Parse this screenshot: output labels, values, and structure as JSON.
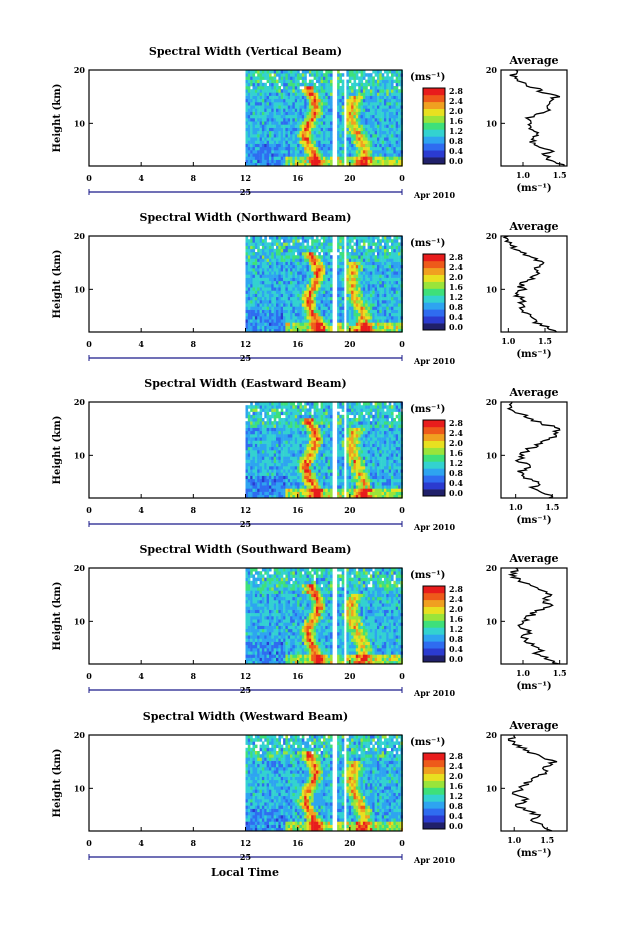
{
  "chart_data": [
    {
      "type": "heatmap",
      "title": "Spectral Width (Vertical Beam)",
      "ylabel": "Height (km)",
      "ylim": [
        2,
        20
      ],
      "yticks": [
        10,
        20
      ],
      "xticks": [
        "0",
        "4",
        "8",
        "12",
        "16",
        "20",
        "0"
      ],
      "xlim": [
        0,
        24
      ],
      "data_start_hour": 12,
      "gaps": [
        [
          18.7,
          19.1
        ],
        [
          19.5,
          19.8
        ]
      ],
      "date_day": "25",
      "date_month_year": "Apr 2010",
      "colorbar": {
        "unit": "(ms⁻¹)",
        "ticks": [
          "0.0",
          "0.4",
          "0.8",
          "1.2",
          "1.6",
          "2.0",
          "2.4",
          "2.8"
        ]
      },
      "average": {
        "title": "Average",
        "xlabel": "(ms⁻¹)",
        "xlim": [
          0.7,
          1.6
        ],
        "xticks": [
          "1.0",
          "1.5"
        ],
        "yticks": [
          10,
          20
        ],
        "profile": [
          [
            1.55,
            2
          ],
          [
            1.4,
            3
          ],
          [
            1.3,
            4
          ],
          [
            1.38,
            5
          ],
          [
            1.15,
            6
          ],
          [
            1.1,
            7
          ],
          [
            1.2,
            8
          ],
          [
            1.05,
            9
          ],
          [
            1.12,
            10
          ],
          [
            1.1,
            11
          ],
          [
            1.25,
            12
          ],
          [
            1.38,
            13
          ],
          [
            1.35,
            14
          ],
          [
            1.45,
            15
          ],
          [
            1.25,
            16
          ],
          [
            1.1,
            17
          ],
          [
            0.95,
            18
          ],
          [
            0.85,
            19
          ],
          [
            0.9,
            20
          ]
        ]
      }
    },
    {
      "type": "heatmap",
      "title": "Spectral Width (Northward Beam)",
      "ylabel": "Height (km)",
      "ylim": [
        2,
        20
      ],
      "yticks": [
        10,
        20
      ],
      "xticks": [
        "0",
        "4",
        "8",
        "12",
        "16",
        "20",
        "0"
      ],
      "xlim": [
        0,
        24
      ],
      "data_start_hour": 12,
      "gaps": [
        [
          18.7,
          19.1
        ],
        [
          19.5,
          19.8
        ]
      ],
      "date_day": "25",
      "date_month_year": "Apr 2010",
      "colorbar": {
        "unit": "(ms⁻¹)",
        "ticks": [
          "0.0",
          "0.4",
          "0.8",
          "1.2",
          "1.6",
          "2.0",
          "2.4",
          "2.8"
        ]
      },
      "average": {
        "title": "Average",
        "xlabel": "(ms⁻¹)",
        "xlim": [
          0.9,
          1.8
        ],
        "xticks": [
          "1.0",
          "1.5"
        ],
        "yticks": [
          10,
          20
        ],
        "profile": [
          [
            1.65,
            2
          ],
          [
            1.5,
            3
          ],
          [
            1.35,
            4
          ],
          [
            1.3,
            5
          ],
          [
            1.2,
            6
          ],
          [
            1.15,
            7
          ],
          [
            1.25,
            8
          ],
          [
            1.1,
            9
          ],
          [
            1.2,
            10
          ],
          [
            1.15,
            11
          ],
          [
            1.3,
            12
          ],
          [
            1.45,
            13
          ],
          [
            1.4,
            14
          ],
          [
            1.5,
            15
          ],
          [
            1.3,
            16
          ],
          [
            1.15,
            17
          ],
          [
            1.05,
            18
          ],
          [
            1.0,
            19
          ],
          [
            1.0,
            20
          ]
        ]
      }
    },
    {
      "type": "heatmap",
      "title": "Spectral Width (Eastward Beam)",
      "ylabel": "Height (km)",
      "ylim": [
        2,
        20
      ],
      "yticks": [
        10,
        20
      ],
      "xticks": [
        "0",
        "4",
        "8",
        "12",
        "16",
        "20",
        "0"
      ],
      "xlim": [
        0,
        24
      ],
      "data_start_hour": 12,
      "gaps": [
        [
          18.7,
          19.1
        ],
        [
          19.5,
          19.8
        ]
      ],
      "date_day": "25",
      "date_month_year": "Apr 2010",
      "colorbar": {
        "unit": "(ms⁻¹)",
        "ticks": [
          "0.0",
          "0.4",
          "0.8",
          "1.2",
          "1.6",
          "2.0",
          "2.4",
          "2.8"
        ]
      },
      "average": {
        "title": "Average",
        "xlabel": "(ms⁻¹)",
        "xlim": [
          0.8,
          1.7
        ],
        "xticks": [
          "1.0",
          "1.5"
        ],
        "yticks": [
          10,
          20
        ],
        "profile": [
          [
            1.5,
            2
          ],
          [
            1.4,
            3
          ],
          [
            1.25,
            4
          ],
          [
            1.3,
            5
          ],
          [
            1.1,
            6
          ],
          [
            1.05,
            7
          ],
          [
            1.2,
            8
          ],
          [
            1.0,
            9
          ],
          [
            1.1,
            10
          ],
          [
            1.15,
            11
          ],
          [
            1.3,
            12
          ],
          [
            1.45,
            13
          ],
          [
            1.55,
            14
          ],
          [
            1.6,
            15
          ],
          [
            1.35,
            16
          ],
          [
            1.2,
            17
          ],
          [
            1.0,
            18
          ],
          [
            0.9,
            19
          ],
          [
            0.95,
            20
          ]
        ]
      }
    },
    {
      "type": "heatmap",
      "title": "Spectral Width (Southward Beam)",
      "ylabel": "Height (km)",
      "ylim": [
        2,
        20
      ],
      "yticks": [
        10,
        20
      ],
      "xticks": [
        "0",
        "4",
        "8",
        "12",
        "16",
        "20",
        "0"
      ],
      "xlim": [
        0,
        24
      ],
      "data_start_hour": 12,
      "gaps": [
        [
          18.7,
          19.1
        ],
        [
          19.5,
          19.8
        ]
      ],
      "date_day": "25",
      "date_month_year": "Apr 2010",
      "colorbar": {
        "unit": "(ms⁻¹)",
        "ticks": [
          "0.0",
          "0.4",
          "0.8",
          "1.2",
          "1.6",
          "2.0",
          "2.4",
          "2.8"
        ]
      },
      "average": {
        "title": "Average",
        "xlabel": "(ms⁻¹)",
        "xlim": [
          0.7,
          1.6
        ],
        "xticks": [
          "1.0",
          "1.5"
        ],
        "yticks": [
          10,
          20
        ],
        "profile": [
          [
            1.45,
            2
          ],
          [
            1.3,
            3
          ],
          [
            1.2,
            4
          ],
          [
            1.25,
            5
          ],
          [
            1.05,
            6
          ],
          [
            1.0,
            7
          ],
          [
            1.1,
            8
          ],
          [
            0.95,
            9
          ],
          [
            1.05,
            10
          ],
          [
            1.1,
            11
          ],
          [
            1.2,
            12
          ],
          [
            1.35,
            13
          ],
          [
            1.3,
            14
          ],
          [
            1.4,
            15
          ],
          [
            1.2,
            16
          ],
          [
            1.05,
            17
          ],
          [
            0.9,
            18
          ],
          [
            0.85,
            19
          ],
          [
            0.9,
            20
          ]
        ]
      }
    },
    {
      "type": "heatmap",
      "title": "Spectral Width (Westward Beam)",
      "ylabel": "Height (km)",
      "ylim": [
        2,
        20
      ],
      "yticks": [
        10,
        20
      ],
      "xticks": [
        "0",
        "4",
        "8",
        "12",
        "16",
        "20",
        "0"
      ],
      "xlim": [
        0,
        24
      ],
      "data_start_hour": 12,
      "gaps": [
        [
          18.7,
          19.1
        ],
        [
          19.5,
          19.8
        ]
      ],
      "date_day": "25",
      "date_month_year": "Apr 2010",
      "colorbar": {
        "unit": "(ms⁻¹)",
        "ticks": [
          "0.0",
          "0.4",
          "0.8",
          "1.2",
          "1.6",
          "2.0",
          "2.4",
          "2.8"
        ]
      },
      "average": {
        "title": "Average",
        "xlabel": "(ms⁻¹)",
        "xlim": [
          0.8,
          1.8
        ],
        "xticks": [
          "1.0",
          "1.5"
        ],
        "yticks": [
          10,
          20
        ],
        "profile": [
          [
            1.55,
            2
          ],
          [
            1.45,
            3
          ],
          [
            1.3,
            4
          ],
          [
            1.35,
            5
          ],
          [
            1.15,
            6
          ],
          [
            1.05,
            7
          ],
          [
            1.2,
            8
          ],
          [
            1.0,
            9
          ],
          [
            1.1,
            10
          ],
          [
            1.2,
            11
          ],
          [
            1.35,
            12
          ],
          [
            1.5,
            13
          ],
          [
            1.45,
            14
          ],
          [
            1.6,
            15
          ],
          [
            1.4,
            16
          ],
          [
            1.2,
            17
          ],
          [
            1.05,
            18
          ],
          [
            0.95,
            19
          ],
          [
            1.0,
            20
          ]
        ]
      }
    }
  ],
  "footer": {
    "xlabel": "Local Time"
  },
  "colors": {
    "scale": [
      "#20206a",
      "#2b3bd0",
      "#2f6cf0",
      "#2ea4f0",
      "#33d2d0",
      "#3ee07a",
      "#9ae43a",
      "#e8e020",
      "#f0a020",
      "#ee5a1a",
      "#e81c1c"
    ],
    "axis": "#000000",
    "timeline": "#1a1a8a"
  }
}
